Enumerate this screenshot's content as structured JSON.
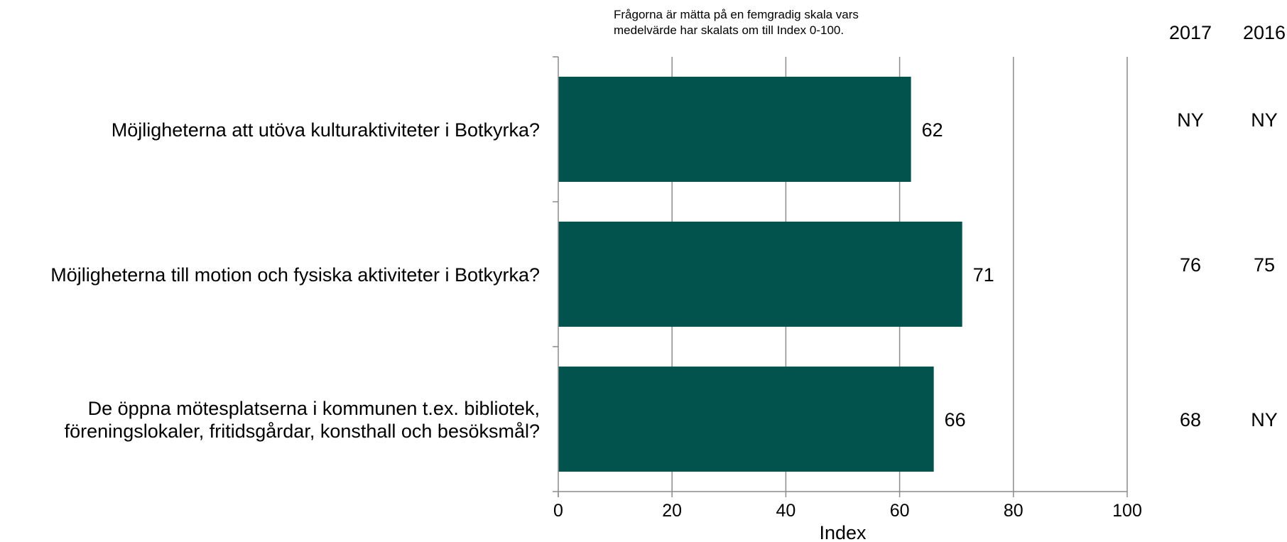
{
  "note": {
    "line1": "Frågorna är mätta på en femgradig skala vars",
    "line2": "medelvärde har skalats om till Index 0-100."
  },
  "columns": {
    "headers": [
      "2017",
      "2016"
    ]
  },
  "chart_data": {
    "type": "bar",
    "orientation": "horizontal",
    "categories": [
      [
        "Möjligheterna att utöva kulturaktiviteter i Botkyrka?"
      ],
      [
        "Möjligheterna till motion och fysiska aktiviteter i Botkyrka?"
      ],
      [
        "De öppna mötesplatserna i kommunen t.ex. bibliotek,",
        "föreningslokaler, fritidsgårdar, konsthall och besöksmål?"
      ]
    ],
    "values": [
      62,
      71,
      66
    ],
    "data_labels": [
      "62",
      "71",
      "66"
    ],
    "comparison": {
      "2017": [
        "NY",
        "76",
        "68"
      ],
      "2016": [
        "NY",
        "75",
        "NY"
      ]
    },
    "xlabel": "Index",
    "xlim": [
      0,
      100
    ],
    "xticks": [
      0,
      20,
      40,
      60,
      80,
      100
    ],
    "grid": "vertical",
    "bar_color": "#02534D",
    "axis_color": "#8C8C8C",
    "legend": "none"
  }
}
